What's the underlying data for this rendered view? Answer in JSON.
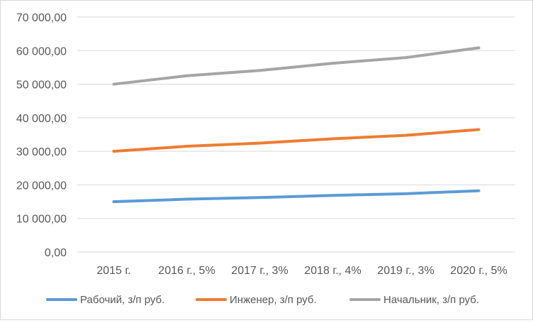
{
  "chart_data": {
    "type": "line",
    "categories": [
      "2015 г.",
      "2016 г., 5%",
      "2017 г., 3%",
      "2018 г., 4%",
      "2019 г., 3%",
      "2020 г., 5%"
    ],
    "series": [
      {
        "name": "Рабочий, з/п руб.",
        "color": "#5b9bd5",
        "values": [
          15000,
          15750,
          16223,
          16871,
          17377,
          18246
        ]
      },
      {
        "name": "Инженер, з/п руб.",
        "color": "#ed7d31",
        "values": [
          30000,
          31500,
          32445,
          33743,
          34755,
          36492
        ]
      },
      {
        "name": "Начальник, з/п руб.",
        "color": "#a5a5a5",
        "values": [
          50000,
          52500,
          54075,
          56238,
          57925,
          60821
        ]
      }
    ],
    "ylim": [
      0,
      70000
    ],
    "yticks": [
      0,
      10000,
      20000,
      30000,
      40000,
      50000,
      60000,
      70000
    ],
    "ytick_labels": [
      "0,00",
      "10 000,00",
      "20 000,00",
      "30 000,00",
      "40 000,00",
      "50 000,00",
      "60 000,00",
      "70 000,00"
    ],
    "grid": true,
    "legend_position": "bottom",
    "title": "",
    "xlabel": "",
    "ylabel": ""
  }
}
